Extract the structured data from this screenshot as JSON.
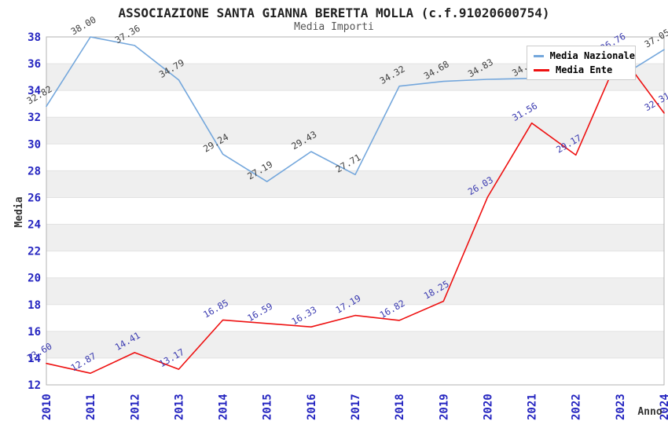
{
  "chart_data": {
    "type": "line",
    "title": "ASSOCIAZIONE SANTA GIANNA BERETTA MOLLA (c.f.91020600754)",
    "subtitle": "Media Importi",
    "xlabel": "Anno",
    "ylabel": "Media",
    "ylim": [
      12,
      38
    ],
    "yticks": [
      12,
      14,
      16,
      18,
      20,
      22,
      24,
      26,
      28,
      30,
      32,
      34,
      36,
      38
    ],
    "grid": "horizontal gridlines with alternating gray bands",
    "legend_position": "top-right",
    "categories": [
      "2010",
      "2011",
      "2012",
      "2013",
      "2014",
      "2015",
      "2016",
      "2017",
      "2018",
      "2019",
      "2020",
      "2021",
      "2022",
      "2023",
      "2024"
    ],
    "series": [
      {
        "name": "Media Nazionale",
        "color": "#74a7dc",
        "label_color": "#3f3f3f",
        "values": [
          32.82,
          38.0,
          37.36,
          34.79,
          29.24,
          27.19,
          29.43,
          27.71,
          34.32,
          34.68,
          34.83,
          34.9,
          34.95,
          35.0,
          37.05
        ],
        "point_labels": [
          "32.82",
          "38.00",
          "37.36",
          "34.79",
          "29.24",
          "27.19",
          "29.43",
          "27.71",
          "34.32",
          "34.68",
          "34.83",
          "34.90",
          "34.95",
          "35.00",
          "37.05"
        ]
      },
      {
        "name": "Media Ente",
        "color": "#ee1111",
        "label_color": "#3a3ab0",
        "values": [
          13.6,
          12.87,
          14.41,
          13.17,
          16.85,
          16.59,
          16.33,
          17.19,
          16.82,
          18.25,
          26.03,
          31.56,
          29.17,
          36.76,
          32.31
        ],
        "point_labels": [
          "13.60",
          "12.87",
          "14.41",
          "13.17",
          "16.85",
          "16.59",
          "16.33",
          "17.19",
          "16.82",
          "18.25",
          "26.03",
          "31.56",
          "29.17",
          "36.76",
          "32.31"
        ]
      }
    ]
  },
  "colors": {
    "tick_label": "#2424c0",
    "band_gray": "#efefef",
    "gridline": "#e2e2e2",
    "frame": "#b3b3b3",
    "axis_title": "#333333"
  }
}
